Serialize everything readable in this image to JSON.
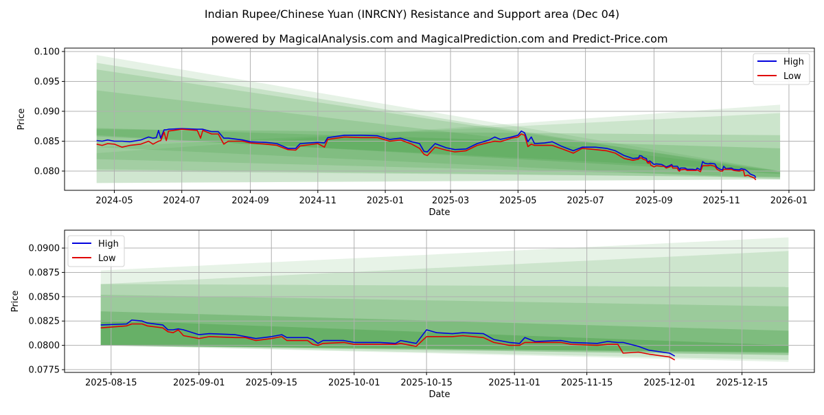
{
  "title": "Indian Rupee/Chinese Yuan (INRCNY) Resistance and Support area (Dec 04)",
  "subtitle": "powered by MagicalAnalysis.com and MagicalPrediction.com and Predict-Price.com",
  "watermarks": [
    "MagicalAnalysis.com",
    "MagicalPrediction.com"
  ],
  "colors": {
    "high": "#0000dd",
    "low": "#e00000",
    "band": "#3c9a3c",
    "grid": "#b0b0b0"
  },
  "legend": {
    "high": "High",
    "low": "Low"
  },
  "chart_data": [
    {
      "type": "line",
      "xlabel": "Date",
      "ylabel": "Price",
      "xlim": [
        "2024-03-17",
        "2026-01-24"
      ],
      "ylim": [
        0.07678,
        0.10057
      ],
      "grid": true,
      "legend_position": "top-right",
      "xticks": [
        "2024-05",
        "2024-07",
        "2024-09",
        "2024-11",
        "2025-01",
        "2025-03",
        "2025-05",
        "2025-07",
        "2025-09",
        "2025-11",
        "2026-01"
      ],
      "yticks": [
        "0.080",
        "0.085",
        "0.090",
        "0.095",
        "0.100"
      ],
      "band_range": [
        "2024-04-15",
        "2025-12-24"
      ],
      "bands": [
        {
          "start": [
            0.078,
            0.0994
          ],
          "end": [
            0.0786,
            0.08
          ],
          "opacity": 0.13
        },
        {
          "start": [
            0.0803,
            0.0981
          ],
          "end": [
            0.0789,
            0.0797
          ],
          "opacity": 0.18
        },
        {
          "start": [
            0.082,
            0.097
          ],
          "end": [
            0.079,
            0.08
          ],
          "opacity": 0.18
        },
        {
          "start": [
            0.084,
            0.0935
          ],
          "end": [
            0.0786,
            0.08
          ],
          "opacity": 0.18
        },
        {
          "start": [
            0.078,
            0.083
          ],
          "end": [
            0.0786,
            0.0911
          ],
          "opacity": 0.13
        },
        {
          "start": [
            0.08,
            0.084
          ],
          "end": [
            0.079,
            0.0897
          ],
          "opacity": 0.15
        },
        {
          "start": [
            0.0858,
            0.087
          ],
          "end": [
            0.08,
            0.086
          ],
          "opacity": 0.2
        },
        {
          "start": [
            0.086,
            0.0872
          ],
          "end": [
            0.0795,
            0.0838
          ],
          "opacity": 0.22
        }
      ]
    },
    {
      "type": "line",
      "xlabel": "Date",
      "ylabel": "Price",
      "xlim": [
        "2025-08-06",
        "2025-12-29"
      ],
      "ylim": [
        0.07722,
        0.09184
      ],
      "grid": true,
      "legend_position": "top-left",
      "xticks": [
        "2025-08-15",
        "2025-09-01",
        "2025-09-15",
        "2025-10-01",
        "2025-10-15",
        "2025-11-01",
        "2025-11-15",
        "2025-12-01",
        "2025-12-15"
      ],
      "yticks": [
        "0.0775",
        "0.0800",
        "0.0825",
        "0.0850",
        "0.0875",
        "0.0900"
      ],
      "band_range": [
        "2025-08-13",
        "2025-12-24"
      ],
      "bands": [
        {
          "start": [
            0.08,
            0.0877
          ],
          "end": [
            0.0783,
            0.0911
          ],
          "opacity": 0.12
        },
        {
          "start": [
            0.08,
            0.0863
          ],
          "end": [
            0.0785,
            0.0897
          ],
          "opacity": 0.15
        },
        {
          "start": [
            0.08,
            0.0863
          ],
          "end": [
            0.079,
            0.086
          ],
          "opacity": 0.18
        },
        {
          "start": [
            0.08,
            0.0852
          ],
          "end": [
            0.079,
            0.084
          ],
          "opacity": 0.2
        },
        {
          "start": [
            0.08,
            0.0835
          ],
          "end": [
            0.0792,
            0.0815
          ],
          "opacity": 0.3
        },
        {
          "start": [
            0.08,
            0.0826
          ],
          "end": [
            0.0793,
            0.08
          ],
          "opacity": 0.35
        }
      ]
    }
  ],
  "series": {
    "dates": [
      "2024-04-15",
      "2024-04-20",
      "2024-04-25",
      "2024-05-01",
      "2024-05-08",
      "2024-05-15",
      "2024-05-25",
      "2024-06-01",
      "2024-06-05",
      "2024-06-08",
      "2024-06-10",
      "2024-06-12",
      "2024-06-15",
      "2024-06-17",
      "2024-06-19",
      "2024-07-01",
      "2024-07-15",
      "2024-07-18",
      "2024-07-20",
      "2024-07-28",
      "2024-08-03",
      "2024-08-08",
      "2024-08-12",
      "2024-08-25",
      "2024-09-01",
      "2024-09-15",
      "2024-09-25",
      "2024-10-05",
      "2024-10-12",
      "2024-10-16",
      "2024-11-01",
      "2024-11-07",
      "2024-11-10",
      "2024-11-25",
      "2024-12-10",
      "2024-12-25",
      "2025-01-05",
      "2025-01-15",
      "2025-01-25",
      "2025-02-01",
      "2025-02-05",
      "2025-02-08",
      "2025-02-12",
      "2025-02-15",
      "2025-02-25",
      "2025-03-05",
      "2025-03-15",
      "2025-03-25",
      "2025-04-05",
      "2025-04-10",
      "2025-04-15",
      "2025-04-25",
      "2025-05-01",
      "2025-05-04",
      "2025-05-07",
      "2025-05-10",
      "2025-05-13",
      "2025-05-16",
      "2025-05-25",
      "2025-06-01",
      "2025-06-10",
      "2025-06-20",
      "2025-06-28",
      "2025-07-10",
      "2025-07-20",
      "2025-07-28",
      "2025-08-05",
      "2025-08-13",
      "2025-08-18",
      "2025-08-19",
      "2025-08-21",
      "2025-08-22",
      "2025-08-25",
      "2025-08-26",
      "2025-08-27",
      "2025-08-28",
      "2025-08-29",
      "2025-09-01",
      "2025-09-03",
      "2025-09-08",
      "2025-09-10",
      "2025-09-12",
      "2025-09-15",
      "2025-09-17",
      "2025-09-18",
      "2025-09-22",
      "2025-09-23",
      "2025-09-24",
      "2025-09-25",
      "2025-09-29",
      "2025-10-01",
      "2025-10-06",
      "2025-10-09",
      "2025-10-10",
      "2025-10-13",
      "2025-10-15",
      "2025-10-17",
      "2025-10-20",
      "2025-10-22",
      "2025-10-26",
      "2025-10-28",
      "2025-10-31",
      "2025-11-02",
      "2025-11-03",
      "2025-11-05",
      "2025-11-10",
      "2025-11-12",
      "2025-11-17",
      "2025-11-19",
      "2025-11-21",
      "2025-11-22",
      "2025-11-25",
      "2025-11-27",
      "2025-12-01",
      "2025-12-02"
    ],
    "high": [
      0.0851,
      0.085,
      0.0852,
      0.085,
      0.085,
      0.0849,
      0.0852,
      0.0857,
      0.0855,
      0.0856,
      0.0868,
      0.0855,
      0.0869,
      0.0869,
      0.087,
      0.0871,
      0.087,
      0.087,
      0.087,
      0.0866,
      0.0866,
      0.0855,
      0.0855,
      0.0852,
      0.0849,
      0.0848,
      0.0846,
      0.0838,
      0.0838,
      0.0846,
      0.0848,
      0.0847,
      0.0856,
      0.086,
      0.086,
      0.0859,
      0.0853,
      0.0855,
      0.0849,
      0.0846,
      0.0833,
      0.0832,
      0.084,
      0.0846,
      0.0839,
      0.0836,
      0.0837,
      0.0846,
      0.0852,
      0.0857,
      0.0853,
      0.0857,
      0.086,
      0.0867,
      0.0864,
      0.0849,
      0.0857,
      0.0846,
      0.0847,
      0.0849,
      0.0841,
      0.0834,
      0.084,
      0.084,
      0.0838,
      0.0834,
      0.0826,
      0.0821,
      0.0822,
      0.0826,
      0.0825,
      0.0823,
      0.0821,
      0.0816,
      0.0816,
      0.0817,
      0.0816,
      0.0811,
      0.0812,
      0.0811,
      0.0809,
      0.0807,
      0.0809,
      0.0811,
      0.0808,
      0.0808,
      0.0806,
      0.0802,
      0.0805,
      0.0805,
      0.0803,
      0.0803,
      0.0802,
      0.0805,
      0.0802,
      0.0816,
      0.0813,
      0.0812,
      0.0813,
      0.0812,
      0.0806,
      0.0803,
      0.0802,
      0.0808,
      0.0804,
      0.0805,
      0.0803,
      0.0802,
      0.0804,
      0.0803,
      0.0803,
      0.0799,
      0.0795,
      0.0792,
      0.0789
    ],
    "low": [
      0.0845,
      0.0843,
      0.0846,
      0.0845,
      0.084,
      0.0843,
      0.0845,
      0.085,
      0.0845,
      0.0848,
      0.085,
      0.0851,
      0.0865,
      0.0851,
      0.0867,
      0.087,
      0.0868,
      0.0855,
      0.0868,
      0.0862,
      0.0862,
      0.0845,
      0.085,
      0.085,
      0.0847,
      0.0845,
      0.0843,
      0.0836,
      0.0835,
      0.0842,
      0.0846,
      0.084,
      0.0853,
      0.0857,
      0.0856,
      0.0856,
      0.085,
      0.0852,
      0.0845,
      0.0838,
      0.0828,
      0.0826,
      0.0834,
      0.084,
      0.0835,
      0.0832,
      0.0834,
      0.0843,
      0.0848,
      0.085,
      0.0849,
      0.0855,
      0.0857,
      0.0862,
      0.086,
      0.0841,
      0.0845,
      0.0843,
      0.0843,
      0.0843,
      0.0837,
      0.083,
      0.0838,
      0.0836,
      0.0834,
      0.083,
      0.0821,
      0.0818,
      0.082,
      0.0822,
      0.0822,
      0.082,
      0.0818,
      0.0814,
      0.0813,
      0.0816,
      0.081,
      0.0807,
      0.0809,
      0.0808,
      0.0808,
      0.0805,
      0.0807,
      0.0809,
      0.0805,
      0.0805,
      0.0801,
      0.08,
      0.0802,
      0.0803,
      0.0801,
      0.0801,
      0.0801,
      0.0802,
      0.0799,
      0.0809,
      0.0809,
      0.0809,
      0.081,
      0.0808,
      0.0803,
      0.08,
      0.08,
      0.0803,
      0.0803,
      0.0803,
      0.0801,
      0.08,
      0.0801,
      0.0801,
      0.0792,
      0.0793,
      0.0791,
      0.0788,
      0.0785
    ]
  }
}
